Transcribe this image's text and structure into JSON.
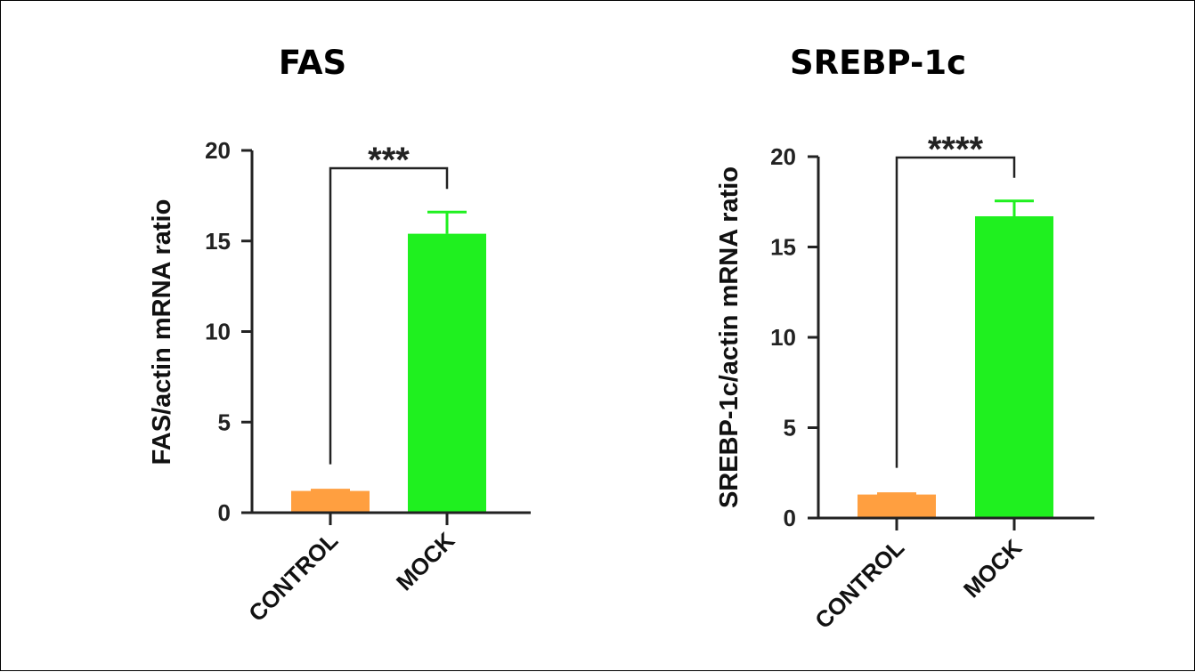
{
  "chart_data": [
    {
      "type": "bar",
      "title": "FAS",
      "ylabel": "FAS/actin mRNA ratio",
      "xlabel": "",
      "categories": [
        "CONTROL",
        "MOCK"
      ],
      "values": [
        1.2,
        15.4
      ],
      "errors": [
        0.05,
        1.2
      ],
      "colors": [
        "#ff9f40",
        "#1ff01f"
      ],
      "ylim": [
        0,
        20
      ],
      "yticks": [
        0,
        5,
        10,
        15,
        20
      ],
      "significance": "***",
      "grid": false
    },
    {
      "type": "bar",
      "title": "SREBP-1c",
      "ylabel": "SREBP-1c/actin mRNA ratio",
      "xlabel": "",
      "categories": [
        "CONTROL",
        "MOCK"
      ],
      "values": [
        1.3,
        16.7
      ],
      "errors": [
        0.05,
        0.85
      ],
      "colors": [
        "#ff9f40",
        "#1ff01f"
      ],
      "ylim": [
        0,
        20
      ],
      "yticks": [
        0,
        5,
        10,
        15,
        20
      ],
      "significance": "****",
      "grid": false
    }
  ]
}
